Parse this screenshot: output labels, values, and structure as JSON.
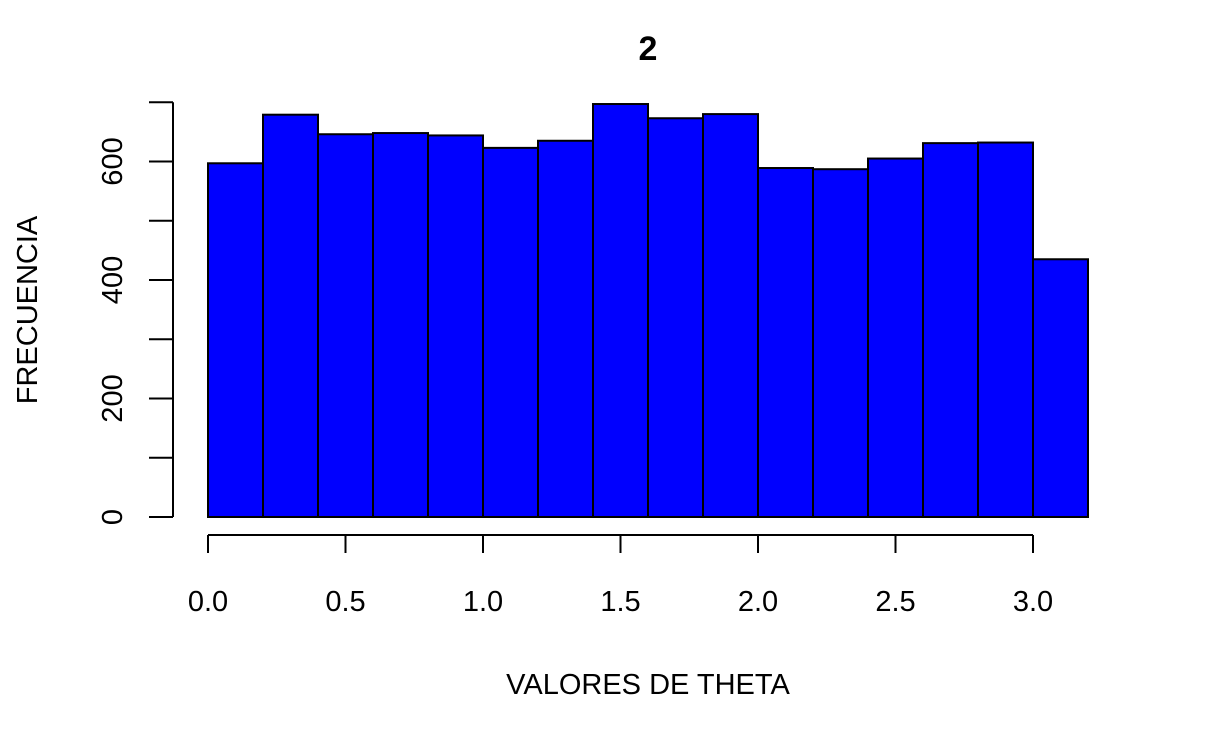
{
  "chart_data": {
    "type": "bar",
    "title": "2",
    "xlabel": "VALORES DE THETA",
    "ylabel": "FRECUENCIA",
    "bin_edges": [
      0.0,
      0.2,
      0.4,
      0.6,
      0.8,
      1.0,
      1.2,
      1.4,
      1.6,
      1.8,
      2.0,
      2.2,
      2.4,
      2.6,
      2.8,
      3.0,
      3.2
    ],
    "values": [
      597,
      679,
      646,
      648,
      644,
      623,
      635,
      697,
      673,
      680,
      589,
      587,
      605,
      631,
      632,
      435
    ],
    "x_ticks": [
      "0.0",
      "0.5",
      "1.0",
      "1.5",
      "2.0",
      "2.5",
      "3.0"
    ],
    "y_ticks": [
      "0",
      "200",
      "400",
      "600"
    ],
    "xlim": [
      0.0,
      3.0
    ],
    "ylim": [
      0,
      700
    ],
    "grid": false,
    "bar_color": "#0000ff",
    "edge_color": "#000000"
  }
}
